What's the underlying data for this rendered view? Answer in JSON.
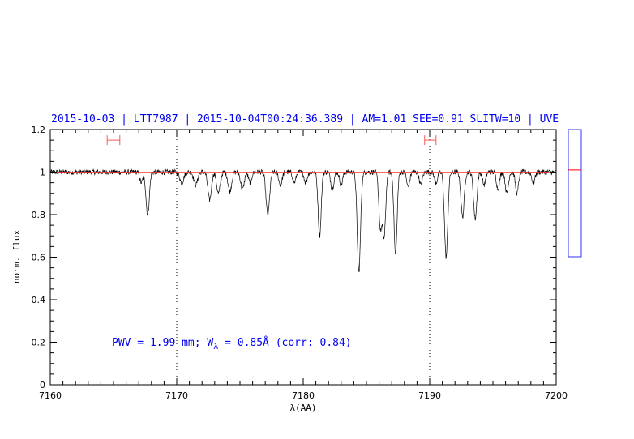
{
  "chart_data": {
    "type": "line",
    "title": "2015-10-03 | LTT7987 | 2015-10-04T00:24:36.389 | AM=1.01 SEE=0.91 SLITW=10 | UVE",
    "xlabel": "λ(AA)",
    "ylabel": "norm. flux",
    "xlim": [
      7160,
      7200
    ],
    "ylim": [
      0,
      1.2
    ],
    "x_ticks": [
      7160,
      7170,
      7180,
      7190,
      7200
    ],
    "y_ticks": [
      0,
      0.2,
      0.4,
      0.6,
      0.8,
      1,
      1.2
    ],
    "x_tick_labels": [
      "7160",
      "7170",
      "7180",
      "7190",
      "7200"
    ],
    "y_tick_labels": [
      "0",
      "0.2",
      "0.4",
      "0.6",
      "0.8",
      "1",
      "1.2"
    ],
    "vertical_dotted_lines_x": [
      7170,
      7190
    ],
    "continuum_level": 1.0,
    "annotation": {
      "pre": "PWV = 1.99 mm; W",
      "sub": "λ",
      "post": " = 0.85Å (corr: 0.84)"
    },
    "continuum_windows": [
      {
        "x_min": 7164.5,
        "x_max": 7165.5,
        "y": 1.15
      },
      {
        "x_min": 7189.6,
        "x_max": 7190.5,
        "y": 1.15
      }
    ],
    "spectrum_noise_amplitude": 0.012,
    "absorption_lines": [
      {
        "x": 7167.7,
        "depth": 0.2,
        "width": 0.13
      },
      {
        "x": 7167.2,
        "depth": 0.05,
        "width": 0.12
      },
      {
        "x": 7170.4,
        "depth": 0.05,
        "width": 0.15
      },
      {
        "x": 7171.5,
        "depth": 0.06,
        "width": 0.15
      },
      {
        "x": 7172.6,
        "depth": 0.13,
        "width": 0.14
      },
      {
        "x": 7173.3,
        "depth": 0.1,
        "width": 0.14
      },
      {
        "x": 7174.2,
        "depth": 0.09,
        "width": 0.14
      },
      {
        "x": 7175.2,
        "depth": 0.08,
        "width": 0.14
      },
      {
        "x": 7175.8,
        "depth": 0.05,
        "width": 0.12
      },
      {
        "x": 7177.2,
        "depth": 0.2,
        "width": 0.14
      },
      {
        "x": 7178.2,
        "depth": 0.06,
        "width": 0.13
      },
      {
        "x": 7179.3,
        "depth": 0.05,
        "width": 0.12
      },
      {
        "x": 7180.2,
        "depth": 0.05,
        "width": 0.12
      },
      {
        "x": 7181.3,
        "depth": 0.3,
        "width": 0.12
      },
      {
        "x": 7182.3,
        "depth": 0.08,
        "width": 0.12
      },
      {
        "x": 7183.0,
        "depth": 0.06,
        "width": 0.12
      },
      {
        "x": 7184.4,
        "depth": 0.47,
        "width": 0.13
      },
      {
        "x": 7186.1,
        "depth": 0.26,
        "width": 0.12
      },
      {
        "x": 7186.4,
        "depth": 0.3,
        "width": 0.12
      },
      {
        "x": 7187.3,
        "depth": 0.39,
        "width": 0.12
      },
      {
        "x": 7188.3,
        "depth": 0.07,
        "width": 0.12
      },
      {
        "x": 7189.3,
        "depth": 0.06,
        "width": 0.12
      },
      {
        "x": 7190.5,
        "depth": 0.05,
        "width": 0.12
      },
      {
        "x": 7191.3,
        "depth": 0.4,
        "width": 0.13
      },
      {
        "x": 7192.6,
        "depth": 0.21,
        "width": 0.13
      },
      {
        "x": 7193.6,
        "depth": 0.22,
        "width": 0.13
      },
      {
        "x": 7194.3,
        "depth": 0.06,
        "width": 0.12
      },
      {
        "x": 7195.4,
        "depth": 0.08,
        "width": 0.12
      },
      {
        "x": 7196.1,
        "depth": 0.1,
        "width": 0.12
      },
      {
        "x": 7196.9,
        "depth": 0.1,
        "width": 0.12
      },
      {
        "x": 7198.2,
        "depth": 0.05,
        "width": 0.12
      }
    ],
    "side_panel_marker_y": 1.01,
    "colors": {
      "spectrum": "#000000",
      "continuum": "#ff3333",
      "windows": "#ff5555",
      "title": "#0000ee",
      "side_panel_border": "#3333ff",
      "side_panel_marker": "#ff0000"
    }
  }
}
